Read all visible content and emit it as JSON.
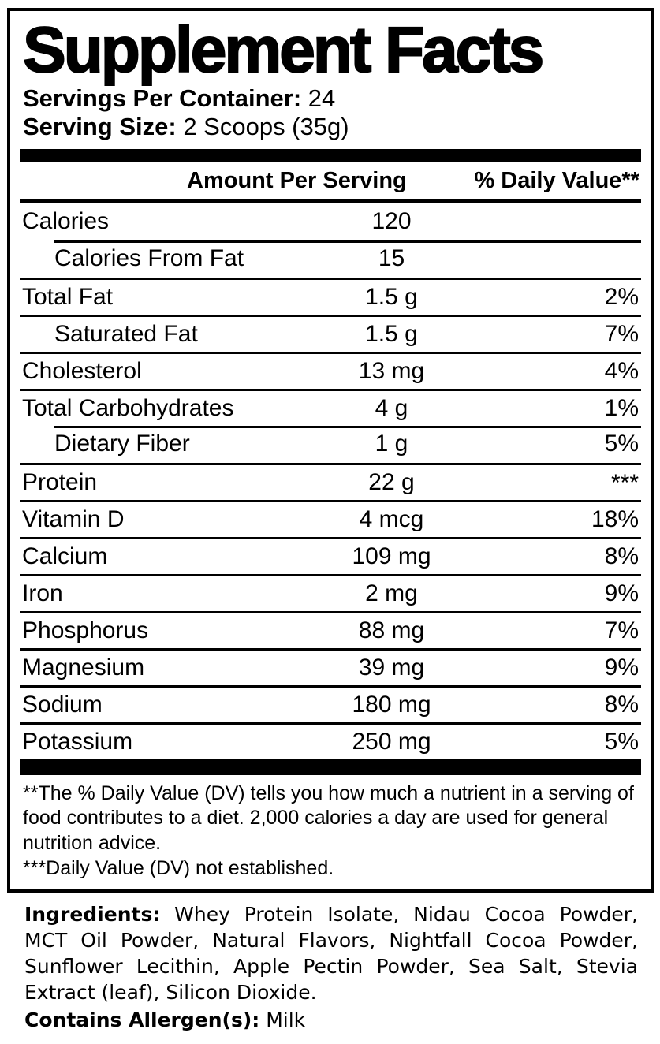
{
  "label": {
    "title": "Supplement Facts",
    "servings_per_container_label": "Servings Per Container:",
    "servings_per_container_value": "24",
    "serving_size_label": "Serving Size:",
    "serving_size_value": "2 Scoops (35g)",
    "header": {
      "amount_col": "Amount Per Serving",
      "daily_value_col": "% Daily Value**"
    },
    "rows": [
      {
        "name": "Calories",
        "amount": "120",
        "dv": "",
        "indent": false,
        "sep_indent": false,
        "first": true
      },
      {
        "name": "Calories From Fat",
        "amount": "15",
        "dv": "",
        "indent": true,
        "sep_indent": true
      },
      {
        "name": "Total Fat",
        "amount": "1.5 g",
        "dv": "2%",
        "indent": false,
        "sep_indent": false
      },
      {
        "name": "Saturated Fat",
        "amount": "1.5 g",
        "dv": "7%",
        "indent": true,
        "sep_indent": false
      },
      {
        "name": "Cholesterol",
        "amount": "13 mg",
        "dv": "4%",
        "indent": false,
        "sep_indent": false
      },
      {
        "name": "Total Carbohydrates",
        "amount": "4 g",
        "dv": "1%",
        "indent": false,
        "sep_indent": false
      },
      {
        "name": "Dietary Fiber",
        "amount": "1 g",
        "dv": "5%",
        "indent": true,
        "sep_indent": true
      },
      {
        "name": "Protein",
        "amount": "22 g",
        "dv": "***",
        "indent": false,
        "sep_indent": false
      },
      {
        "name": "Vitamin D",
        "amount": "4 mcg",
        "dv": "18%",
        "indent": false,
        "sep_indent": false
      },
      {
        "name": "Calcium",
        "amount": "109 mg",
        "dv": "8%",
        "indent": false,
        "sep_indent": false
      },
      {
        "name": "Iron",
        "amount": "2 mg",
        "dv": "9%",
        "indent": false,
        "sep_indent": false
      },
      {
        "name": "Phosphorus",
        "amount": "88 mg",
        "dv": "7%",
        "indent": false,
        "sep_indent": false
      },
      {
        "name": "Magnesium",
        "amount": "39 mg",
        "dv": "9%",
        "indent": false,
        "sep_indent": false
      },
      {
        "name": "Sodium",
        "amount": "180 mg",
        "dv": "8%",
        "indent": false,
        "sep_indent": false
      },
      {
        "name": "Potassium",
        "amount": "250 mg",
        "dv": "5%",
        "indent": false,
        "sep_indent": false
      }
    ],
    "footnotes": [
      "**The % Daily Value (DV) tells you how much a nutrient in a serving of food contributes to a diet. 2,000 calories a day are used for general nutrition advice.",
      "***Daily Value (DV) not established."
    ]
  },
  "ingredients": {
    "label": "Ingredients:",
    "text": "Whey Protein Isolate, Nidau Cocoa Powder, MCT Oil Powder, Natural Flavors, Nightfall Cocoa Powder, Sunflower Lecithin, Apple Pectin Powder, Sea Salt, Stevia Extract (leaf), Silicon Dioxide."
  },
  "allergens": {
    "label": "Contains Allergen(s):",
    "value": "Milk"
  },
  "colors": {
    "text": "#000000",
    "background": "#ffffff"
  }
}
